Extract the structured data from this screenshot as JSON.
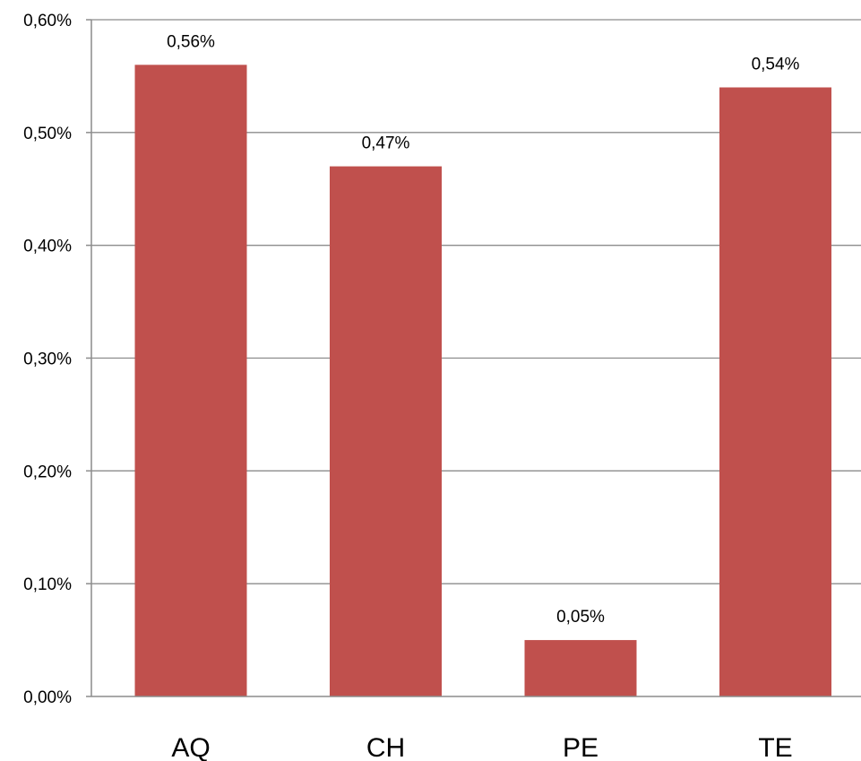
{
  "chart_data": {
    "type": "bar",
    "title": "",
    "xlabel": "",
    "ylabel": "",
    "categories": [
      "AQ",
      "CH",
      "PE",
      "TE"
    ],
    "values": [
      0.56,
      0.47,
      0.05,
      0.54
    ],
    "value_labels": [
      "0,56%",
      "0,47%",
      "0,05%",
      "0,54%"
    ],
    "ylim": [
      0,
      0.6
    ],
    "yticks": [
      0,
      0.1,
      0.2,
      0.3,
      0.4,
      0.5,
      0.6
    ],
    "ytick_labels": [
      "0,00%",
      "0,10%",
      "0,20%",
      "0,30%",
      "0,40%",
      "0,50%",
      "0,60%"
    ],
    "grid": true,
    "legend": "none",
    "bar_color": "#c0504d"
  }
}
